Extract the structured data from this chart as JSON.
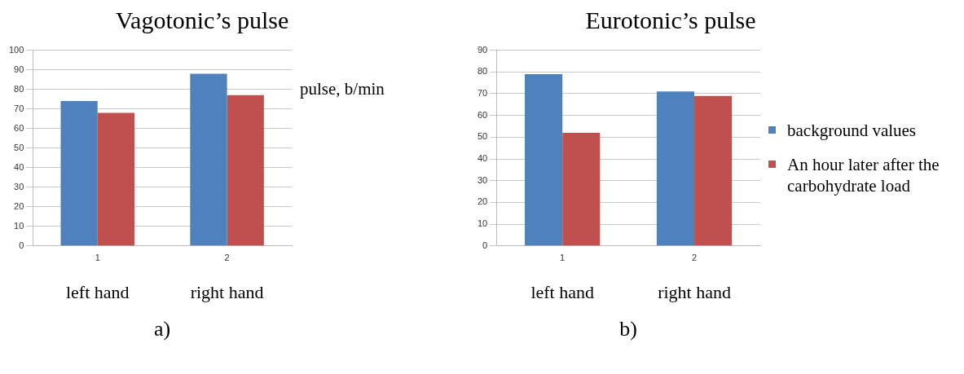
{
  "chart_data": [
    {
      "type": "bar",
      "title": "Vagotonic’s pulse",
      "categories": [
        "1",
        "2"
      ],
      "series": [
        {
          "color": "#4f81bd",
          "values": [
            74,
            88
          ]
        },
        {
          "color": "#c0504d",
          "values": [
            68,
            77
          ]
        }
      ],
      "ylim": [
        0,
        100
      ],
      "yticks": [
        0,
        10,
        20,
        30,
        40,
        50,
        60,
        70,
        80,
        90,
        100
      ],
      "grid": "y",
      "legend": false,
      "annotations": [
        "pulse, b/min",
        "left hand",
        "right hand",
        "a)"
      ]
    },
    {
      "type": "bar",
      "title": "Eurotonic’s pulse",
      "categories": [
        "1",
        "2"
      ],
      "series": [
        {
          "name": "background values",
          "color": "#4f81bd",
          "values": [
            79,
            71
          ]
        },
        {
          "name": "An hour later  after the carbohydrate load",
          "color": "#c0504d",
          "values": [
            52,
            69
          ]
        }
      ],
      "ylim": [
        0,
        90
      ],
      "yticks": [
        0,
        10,
        20,
        30,
        40,
        50,
        60,
        70,
        80,
        90
      ],
      "grid": "y",
      "legend": "right",
      "annotations": [
        "left hand",
        "right hand",
        "b)"
      ]
    }
  ]
}
